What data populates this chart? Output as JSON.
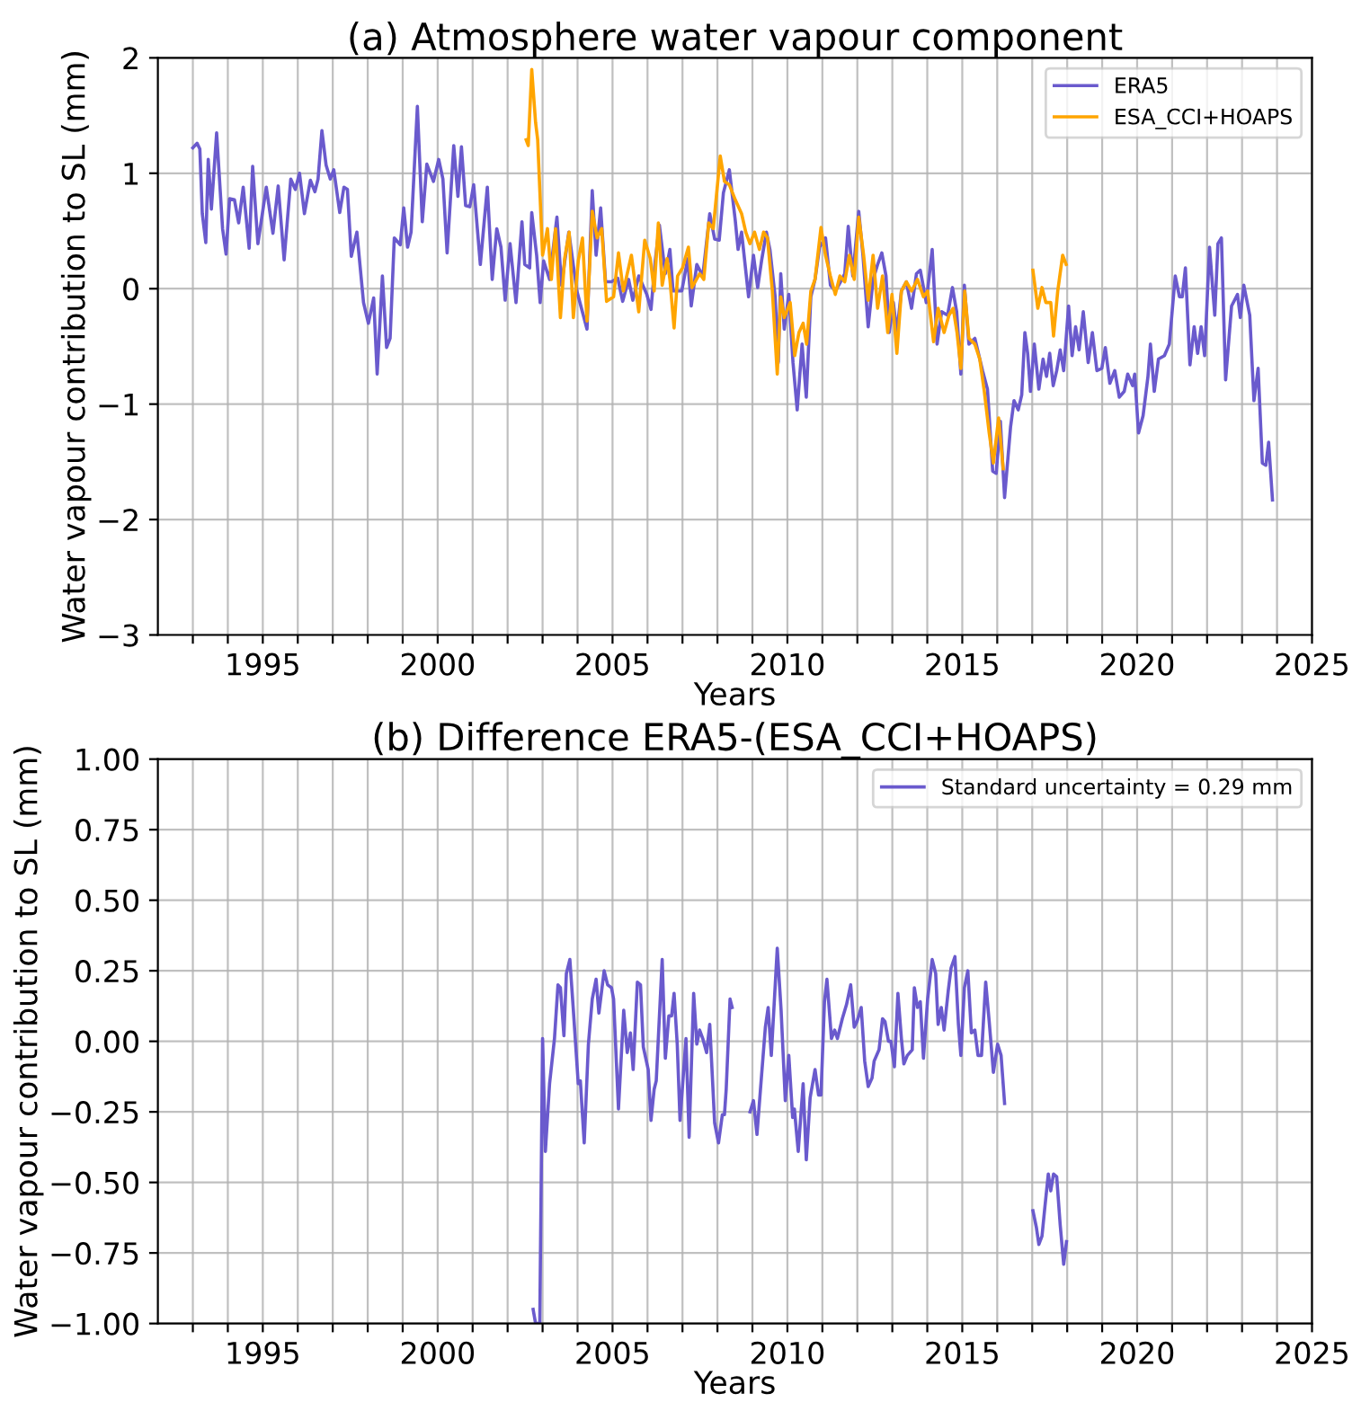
{
  "chart_data": [
    {
      "type": "line",
      "title": "(a) Atmosphere water vapour component",
      "xlabel": "Years",
      "ylabel": "Water vapour contribution to SL (mm)",
      "xlim": [
        1992.0,
        2025
      ],
      "ylim": [
        -3,
        2
      ],
      "xticks": [
        {
          "value": 1993,
          "label": null
        },
        {
          "value": 1994,
          "label": null
        },
        1995,
        {
          "value": 1996,
          "label": null
        },
        {
          "value": 1997,
          "label": null
        },
        {
          "value": 1998,
          "label": null
        },
        {
          "value": 1999,
          "label": null
        },
        2000,
        {
          "value": 2001,
          "label": null
        },
        {
          "value": 2002,
          "label": null
        },
        {
          "value": 2003,
          "label": null
        },
        {
          "value": 2004,
          "label": null
        },
        2005,
        {
          "value": 2006,
          "label": null
        },
        {
          "value": 2007,
          "label": null
        },
        {
          "value": 2008,
          "label": null
        },
        {
          "value": 2009,
          "label": null
        },
        2010,
        {
          "value": 2011,
          "label": null
        },
        {
          "value": 2012,
          "label": null
        },
        {
          "value": 2013,
          "label": null
        },
        {
          "value": 2014,
          "label": null
        },
        2015,
        {
          "value": 2016,
          "label": null
        },
        {
          "value": 2017,
          "label": null
        },
        {
          "value": 2018,
          "label": null
        },
        {
          "value": 2019,
          "label": null
        },
        2020,
        {
          "value": 2021,
          "label": null
        },
        {
          "value": 2022,
          "label": null
        },
        {
          "value": 2023,
          "label": null
        },
        {
          "value": 2024,
          "label": null
        },
        2025
      ],
      "yticks": [
        {
          "value": -3,
          "label": "−3"
        },
        {
          "value": -2,
          "label": "−2"
        },
        {
          "value": -1,
          "label": "−1"
        },
        0,
        1,
        2
      ],
      "grid": true,
      "legend": "top right",
      "series": [
        {
          "name": "ERA5",
          "color": "#6a5acd",
          "x": [
            1993.0,
            1993.12,
            1993.2,
            1993.27,
            1993.37,
            1993.44,
            1993.53,
            1993.68,
            1993.85,
            1993.95,
            1994.05,
            1994.19,
            1994.31,
            1994.44,
            1994.61,
            1994.71,
            1994.86,
            1995.1,
            1995.29,
            1995.44,
            1995.61,
            1995.8,
            1995.93,
            1996.05,
            1996.19,
            1996.36,
            1996.49,
            1996.58,
            1996.69,
            1996.81,
            1996.93,
            1997.03,
            1997.2,
            1997.32,
            1997.42,
            1997.53,
            1997.69,
            1997.88,
            1998.02,
            1998.17,
            1998.27,
            1998.42,
            1998.54,
            1998.64,
            1998.76,
            1998.93,
            1999.03,
            1999.14,
            1999.24,
            1999.42,
            1999.56,
            1999.69,
            1999.88,
            2000.03,
            2000.15,
            2000.27,
            2000.46,
            2000.58,
            2000.68,
            2000.8,
            2000.92,
            2001.03,
            2001.22,
            2001.42,
            2001.56,
            2001.69,
            2001.81,
            2001.93,
            2002.07,
            2002.24,
            2002.41,
            2002.49,
            2002.63,
            2002.69,
            2002.83,
            2002.93,
            2003.03,
            2003.2,
            2003.41,
            2003.54,
            2003.75,
            2003.98,
            2004.27,
            2004.42,
            2004.53,
            2004.66,
            2004.8,
            2004.97,
            2005.15,
            2005.29,
            2005.46,
            2005.58,
            2005.75,
            2005.98,
            2006.1,
            2006.22,
            2006.34,
            2006.51,
            2006.64,
            2006.73,
            2006.98,
            2007.15,
            2007.25,
            2007.41,
            2007.58,
            2007.78,
            2007.92,
            2008.05,
            2008.17,
            2008.34,
            2008.51,
            2008.59,
            2008.69,
            2008.89,
            2009.03,
            2009.15,
            2009.26,
            2009.4,
            2009.5,
            2009.65,
            2009.74,
            2009.81,
            2009.91,
            2010.04,
            2010.16,
            2010.28,
            2010.42,
            2010.54,
            2010.67,
            2010.79,
            2010.92,
            2011.09,
            2011.23,
            2011.37,
            2011.52,
            2011.64,
            2011.74,
            2011.87,
            2012.04,
            2012.16,
            2012.31,
            2012.45,
            2012.58,
            2012.7,
            2012.82,
            2012.91,
            2013.03,
            2013.13,
            2013.26,
            2013.4,
            2013.55,
            2013.69,
            2013.8,
            2013.97,
            2014.14,
            2014.28,
            2014.41,
            2014.58,
            2014.72,
            2014.84,
            2014.96,
            2015.06,
            2015.19,
            2015.36,
            2015.58,
            2015.72,
            2015.87,
            2015.97,
            2016.09,
            2016.21,
            2016.38,
            2016.48,
            2016.6,
            2016.7,
            2016.79,
            2016.87,
            2016.95,
            2017.06,
            2017.19,
            2017.31,
            2017.41,
            2017.5,
            2017.6,
            2017.7,
            2017.8,
            2017.9,
            2018.04,
            2018.14,
            2018.24,
            2018.34,
            2018.46,
            2018.6,
            2018.72,
            2018.85,
            2018.99,
            2019.09,
            2019.22,
            2019.36,
            2019.49,
            2019.63,
            2019.73,
            2019.87,
            2019.93,
            2020.04,
            2020.17,
            2020.31,
            2020.38,
            2020.49,
            2020.61,
            2020.78,
            2020.92,
            2021.09,
            2021.21,
            2021.29,
            2021.38,
            2021.51,
            2021.63,
            2021.73,
            2021.83,
            2021.93,
            2022.07,
            2022.22,
            2022.31,
            2022.41,
            2022.53,
            2022.7,
            2022.87,
            2022.95,
            2023.05,
            2023.22,
            2023.34,
            2023.46,
            2023.58,
            2023.68,
            2023.76,
            2023.87
          ],
          "values": [
            1.22,
            1.26,
            1.21,
            0.65,
            0.4,
            1.12,
            0.69,
            1.35,
            0.52,
            0.3,
            0.78,
            0.77,
            0.57,
            0.88,
            0.35,
            1.06,
            0.39,
            0.88,
            0.48,
            0.89,
            0.25,
            0.95,
            0.86,
            1.0,
            0.65,
            0.94,
            0.84,
            0.95,
            1.37,
            1.07,
            0.95,
            1.03,
            0.66,
            0.88,
            0.86,
            0.28,
            0.49,
            -0.12,
            -0.3,
            -0.08,
            -0.74,
            0.11,
            -0.51,
            -0.43,
            0.44,
            0.38,
            0.7,
            0.36,
            0.49,
            1.58,
            0.58,
            1.08,
            0.93,
            1.12,
            0.95,
            0.31,
            1.24,
            0.8,
            1.23,
            0.72,
            0.71,
            0.9,
            0.21,
            0.88,
            0.08,
            0.52,
            0.36,
            -0.1,
            0.39,
            -0.12,
            0.58,
            0.21,
            0.18,
            0.66,
            0.29,
            -0.12,
            0.24,
            0.08,
            0.62,
            0.03,
            0.49,
            -0.02,
            -0.35,
            0.85,
            0.29,
            0.7,
            0.06,
            0.06,
            0.09,
            -0.11,
            0.08,
            -0.1,
            0.11,
            -0.05,
            -0.18,
            0.24,
            0.55,
            0.13,
            0.34,
            -0.02,
            -0.02,
            0.26,
            -0.15,
            0.21,
            0.11,
            0.65,
            0.43,
            0.42,
            0.83,
            1.03,
            0.59,
            0.34,
            0.49,
            -0.07,
            0.29,
            0.01,
            0.24,
            0.49,
            0.34,
            -0.07,
            -0.64,
            0.13,
            -0.35,
            -0.05,
            -0.64,
            -1.05,
            -0.48,
            -0.94,
            -0.07,
            0.08,
            0.36,
            0.44,
            0.03,
            -0.02,
            0.06,
            0.13,
            0.54,
            0.11,
            0.67,
            0.29,
            -0.33,
            0.08,
            0.21,
            0.31,
            0.11,
            -0.38,
            -0.12,
            -0.38,
            -0.02,
            0.06,
            -0.17,
            0.13,
            0.16,
            -0.12,
            0.34,
            -0.48,
            -0.2,
            -0.23,
            0.01,
            -0.2,
            -0.74,
            0.03,
            -0.48,
            -0.43,
            -0.71,
            -0.87,
            -1.58,
            -1.6,
            -1.15,
            -1.81,
            -1.2,
            -0.97,
            -1.05,
            -0.92,
            -0.38,
            -0.56,
            -0.89,
            -0.48,
            -0.87,
            -0.61,
            -0.76,
            -0.56,
            -0.84,
            -0.71,
            -0.53,
            -0.71,
            -0.15,
            -0.58,
            -0.33,
            -0.53,
            -0.2,
            -0.64,
            -0.38,
            -0.71,
            -0.69,
            -0.51,
            -0.82,
            -0.71,
            -0.94,
            -0.89,
            -0.74,
            -0.84,
            -0.74,
            -1.25,
            -1.1,
            -0.76,
            -0.48,
            -0.89,
            -0.61,
            -0.58,
            -0.48,
            0.11,
            -0.07,
            -0.07,
            0.18,
            -0.66,
            -0.33,
            -0.56,
            -0.33,
            -0.58,
            0.36,
            -0.23,
            0.39,
            0.44,
            -0.79,
            -0.15,
            -0.05,
            -0.25,
            0.03,
            -0.23,
            -0.97,
            -0.69,
            -1.51,
            -1.53,
            -1.33,
            -1.83
          ]
        },
        {
          "name": "ESA_CCI+HOAPS",
          "color": "#ffa500",
          "x": [
            2002.53,
            2002.59,
            2002.69,
            2002.8,
            2002.86,
            2003.0,
            2003.14,
            2003.25,
            2003.37,
            2003.51,
            2003.63,
            2003.76,
            2003.88,
            2004.02,
            2004.14,
            2004.27,
            2004.42,
            2004.56,
            2004.69,
            2004.83,
            2005.03,
            2005.17,
            2005.31,
            2005.42,
            2005.54,
            2005.75,
            2005.92,
            2006.08,
            2006.19,
            2006.31,
            2006.42,
            2006.56,
            2006.64,
            2006.76,
            2006.86,
            2007.0,
            2007.17,
            2007.27,
            2007.49,
            2007.61,
            2007.75,
            2007.88,
            2008.08,
            2008.2,
            2008.34,
            2008.51,
            2008.69,
            2008.81,
            2008.93,
            2009.06,
            2009.2,
            2009.32,
            2009.43,
            2009.57,
            2009.71,
            2009.81,
            2009.91,
            2010.08,
            2010.21,
            2010.33,
            2010.45,
            2010.55,
            2010.67,
            2010.79,
            2010.96,
            2011.09,
            2011.23,
            2011.37,
            2011.5,
            2011.64,
            2011.77,
            2011.91,
            2012.04,
            2012.18,
            2012.31,
            2012.45,
            2012.58,
            2012.72,
            2012.87,
            2012.99,
            2013.13,
            2013.26,
            2013.4,
            2013.55,
            2013.72,
            2013.89,
            2014.01,
            2014.18,
            2014.31,
            2014.48,
            2014.62,
            2014.74,
            2014.85,
            2014.96,
            2015.07,
            2015.19,
            2015.36,
            2015.5,
            2015.63,
            2015.77,
            2015.89,
            2016.04,
            2016.17,
            2016.6,
            2017.02,
            2017.16,
            2017.28,
            2017.39,
            2017.53,
            2017.61,
            2017.73,
            2017.87,
            2017.97
          ],
          "values": [
            1.29,
            1.24,
            1.9,
            1.44,
            1.29,
            0.29,
            0.52,
            0.08,
            0.52,
            -0.25,
            0.26,
            0.49,
            -0.25,
            0.24,
            0.44,
            -0.28,
            0.67,
            0.44,
            0.52,
            -0.11,
            -0.07,
            0.31,
            -0.02,
            0.13,
            0.29,
            -0.2,
            0.42,
            0.26,
            -0.02,
            0.57,
            0.03,
            0.26,
            0.08,
            -0.34,
            0.11,
            0.18,
            0.36,
            0.01,
            0.13,
            0.08,
            0.57,
            0.52,
            1.15,
            0.93,
            0.9,
            0.77,
            0.65,
            0.49,
            0.39,
            0.49,
            0.34,
            0.49,
            0.44,
            -0.02,
            -0.74,
            -0.07,
            -0.25,
            -0.12,
            -0.58,
            -0.38,
            -0.3,
            -0.48,
            -0.02,
            0.08,
            0.53,
            0.29,
            0.11,
            -0.05,
            0.11,
            0.06,
            0.29,
            0.08,
            0.62,
            0.29,
            -0.1,
            0.29,
            -0.17,
            0.11,
            -0.38,
            -0.05,
            -0.56,
            -0.02,
            0.06,
            -0.02,
            0.08,
            -0.07,
            -0.02,
            -0.46,
            -0.17,
            -0.38,
            -0.23,
            -0.17,
            -0.38,
            -0.69,
            -0.02,
            -0.43,
            -0.48,
            -0.61,
            -0.89,
            -1.25,
            -1.51,
            -1.12,
            -1.56,
            null,
            0.16,
            -0.17,
            0.01,
            -0.12,
            -0.12,
            -0.41,
            -0.02,
            0.29,
            0.21
          ]
        }
      ]
    },
    {
      "type": "line",
      "title": "(b) Difference ERA5-(ESA_CCI+HOAPS)",
      "xlabel": "Years",
      "ylabel": "Water vapour contribution to SL (mm)",
      "xlim": [
        1992.0,
        2025
      ],
      "ylim": [
        -1.0,
        1.0
      ],
      "xticks": [
        {
          "value": 1993,
          "label": null
        },
        {
          "value": 1994,
          "label": null
        },
        1995,
        {
          "value": 1996,
          "label": null
        },
        {
          "value": 1997,
          "label": null
        },
        {
          "value": 1998,
          "label": null
        },
        {
          "value": 1999,
          "label": null
        },
        2000,
        {
          "value": 2001,
          "label": null
        },
        {
          "value": 2002,
          "label": null
        },
        {
          "value": 2003,
          "label": null
        },
        {
          "value": 2004,
          "label": null
        },
        2005,
        {
          "value": 2006,
          "label": null
        },
        {
          "value": 2007,
          "label": null
        },
        {
          "value": 2008,
          "label": null
        },
        {
          "value": 2009,
          "label": null
        },
        2010,
        {
          "value": 2011,
          "label": null
        },
        {
          "value": 2012,
          "label": null
        },
        {
          "value": 2013,
          "label": null
        },
        {
          "value": 2014,
          "label": null
        },
        2015,
        {
          "value": 2016,
          "label": null
        },
        {
          "value": 2017,
          "label": null
        },
        {
          "value": 2018,
          "label": null
        },
        {
          "value": 2019,
          "label": null
        },
        2020,
        {
          "value": 2021,
          "label": null
        },
        {
          "value": 2022,
          "label": null
        },
        {
          "value": 2023,
          "label": null
        },
        {
          "value": 2024,
          "label": null
        },
        2025
      ],
      "yticks": [
        {
          "value": -1.0,
          "label": "−1.00"
        },
        {
          "value": -0.75,
          "label": "−0.75"
        },
        {
          "value": -0.5,
          "label": "−0.50"
        },
        {
          "value": -0.25,
          "label": "−0.25"
        },
        {
          "value": 0,
          "label": "0.00"
        },
        {
          "value": 0.25,
          "label": "0.25"
        },
        {
          "value": 0.5,
          "label": "0.50"
        },
        {
          "value": 0.75,
          "label": "0.75"
        },
        {
          "value": 1.0,
          "label": "1.00"
        }
      ],
      "grid": true,
      "legend": "top right",
      "series": [
        {
          "name": "Standard uncertainty = 0.29 mm",
          "color": "#6a5acd",
          "x": [
            2002.73,
            2002.8,
            2002.92,
            2003.0,
            2003.08,
            2003.2,
            2003.34,
            2003.44,
            2003.51,
            2003.61,
            2003.68,
            2003.78,
            2003.88,
            2004.02,
            2004.08,
            2004.19,
            2004.31,
            2004.42,
            2004.53,
            2004.61,
            2004.76,
            2004.86,
            2004.97,
            2005.03,
            2005.17,
            2005.32,
            2005.42,
            2005.51,
            2005.59,
            2005.71,
            2005.8,
            2005.88,
            2006.02,
            2006.1,
            2006.19,
            2006.25,
            2006.42,
            2006.51,
            2006.61,
            2006.69,
            2006.76,
            2006.85,
            2006.93,
            2007.1,
            2007.19,
            2007.32,
            2007.41,
            2007.49,
            2007.58,
            2007.69,
            2007.78,
            2007.92,
            2008.03,
            2008.14,
            2008.2,
            2008.25,
            2008.36,
            2008.42,
            2008.7,
            2008.93,
            2009.03,
            2009.13,
            2009.23,
            2009.37,
            2009.45,
            2009.54,
            2009.71,
            2009.82,
            2009.94,
            2010.04,
            2010.15,
            2010.2,
            2010.31,
            2010.45,
            2010.54,
            2010.65,
            2010.79,
            2010.89,
            2010.96,
            2011.06,
            2011.13,
            2011.26,
            2011.35,
            2011.43,
            2011.57,
            2011.69,
            2011.81,
            2011.91,
            2011.99,
            2012.11,
            2012.21,
            2012.31,
            2012.42,
            2012.48,
            2012.62,
            2012.72,
            2012.79,
            2012.89,
            2012.96,
            2013.06,
            2013.16,
            2013.26,
            2013.33,
            2013.43,
            2013.57,
            2013.63,
            2013.72,
            2013.8,
            2013.89,
            2014.01,
            2014.14,
            2014.24,
            2014.31,
            2014.4,
            2014.48,
            2014.6,
            2014.68,
            2014.79,
            2014.89,
            2014.96,
            2015.06,
            2015.16,
            2015.26,
            2015.36,
            2015.45,
            2015.55,
            2015.67,
            2015.77,
            2015.89,
            2016.01,
            2016.11,
            2016.21,
            2016.6,
            2017.02,
            2017.12,
            2017.19,
            2017.28,
            2017.36,
            2017.46,
            2017.53,
            2017.61,
            2017.7,
            2017.8,
            2017.9,
            2017.98
          ],
          "values": [
            -0.95,
            -1.0,
            -1.0,
            0.01,
            -0.39,
            -0.15,
            0.01,
            0.2,
            0.19,
            0.02,
            0.24,
            0.29,
            0.11,
            -0.15,
            -0.14,
            -0.36,
            -0.01,
            0.15,
            0.22,
            0.1,
            0.25,
            0.2,
            0.19,
            0.15,
            -0.24,
            0.11,
            -0.04,
            0.03,
            -0.1,
            0.21,
            0.2,
            -0.02,
            -0.1,
            -0.28,
            -0.17,
            -0.14,
            0.29,
            -0.06,
            0.09,
            0.09,
            0.17,
            -0.01,
            -0.28,
            0.01,
            -0.34,
            0.17,
            -0.01,
            0.04,
            0.01,
            -0.04,
            0.06,
            -0.29,
            -0.36,
            -0.26,
            -0.26,
            -0.17,
            0.15,
            0.12,
            null,
            -0.25,
            -0.21,
            -0.33,
            -0.17,
            0.05,
            0.12,
            -0.05,
            0.33,
            0.11,
            -0.21,
            -0.05,
            -0.27,
            -0.24,
            -0.39,
            -0.15,
            -0.42,
            -0.2,
            -0.1,
            -0.19,
            -0.19,
            0.14,
            0.22,
            0.01,
            0.04,
            0.01,
            0.08,
            0.13,
            0.2,
            0.05,
            0.07,
            0.12,
            -0.07,
            -0.16,
            -0.13,
            -0.07,
            -0.03,
            0.08,
            0.07,
            0.0,
            0.0,
            -0.09,
            0.17,
            0.01,
            -0.08,
            -0.05,
            -0.03,
            0.19,
            0.12,
            0.14,
            -0.06,
            0.15,
            0.29,
            0.24,
            0.06,
            0.12,
            0.04,
            0.18,
            0.26,
            0.3,
            0.06,
            -0.05,
            0.19,
            0.25,
            0.03,
            0.04,
            -0.05,
            -0.05,
            0.21,
            0.07,
            -0.11,
            -0.01,
            -0.05,
            -0.22,
            null,
            -0.6,
            -0.66,
            -0.72,
            -0.69,
            -0.59,
            -0.47,
            -0.53,
            -0.47,
            -0.48,
            -0.65,
            -0.79,
            -0.71
          ]
        }
      ]
    }
  ]
}
